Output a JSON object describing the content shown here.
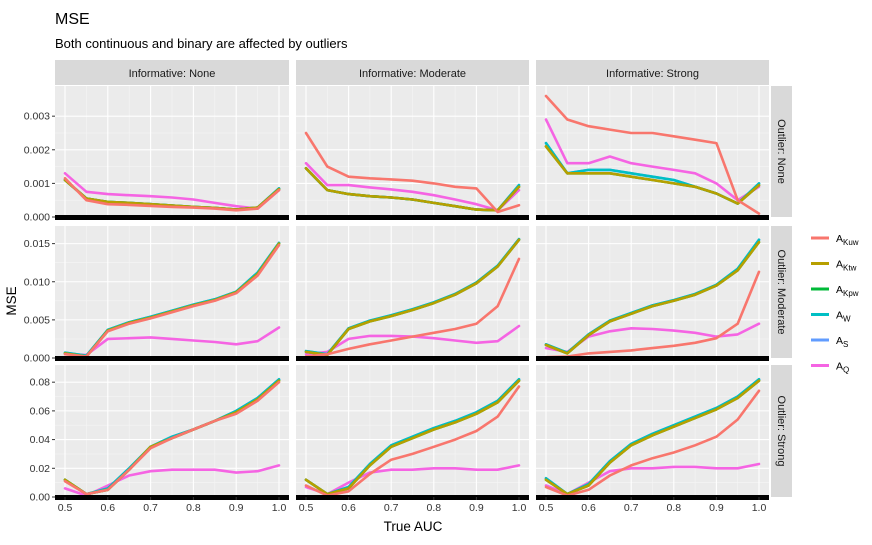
{
  "chart_data": {
    "type": "line",
    "title": "MSE",
    "subtitle": "Both continuous and binary are affected by outliers",
    "xlabel": "True AUC",
    "ylabel": "MSE",
    "facet_cols": [
      "Informative: None",
      "Informative: Moderate",
      "Informative: Strong"
    ],
    "facet_rows": [
      "Outlier: None",
      "Outlier: Moderate",
      "Outlier: Strong"
    ],
    "xlim": [
      0.5,
      1.0
    ],
    "x_ticks": [
      "0.5",
      "0.6",
      "0.7",
      "0.8",
      "0.9",
      "1.0"
    ],
    "x": [
      0.5,
      0.55,
      0.6,
      0.65,
      0.7,
      0.75,
      0.8,
      0.85,
      0.9,
      0.95,
      1.0
    ],
    "grid": true,
    "legend_position": "right",
    "legend": [
      {
        "key": "Kuw",
        "base": "A",
        "sub": "Kuw",
        "color": "#F8766D"
      },
      {
        "key": "Ktw",
        "base": "A",
        "sub": "Ktw",
        "color": "#B79F00"
      },
      {
        "key": "Kpw",
        "base": "A",
        "sub": "Kpw",
        "color": "#00BA38"
      },
      {
        "key": "W",
        "base": "A",
        "sub": "W",
        "color": "#00BFC4"
      },
      {
        "key": "S",
        "base": "A",
        "sub": "S",
        "color": "#619CFF"
      },
      {
        "key": "Q",
        "base": "A",
        "sub": "Q",
        "color": "#F564E3"
      }
    ],
    "rows": [
      {
        "ylim": [
          0,
          0.0036
        ],
        "y_ticks": [
          "0.000",
          "0.001",
          "0.002",
          "0.003"
        ],
        "y_tick_values": [
          0,
          0.001,
          0.002,
          0.003
        ],
        "panels": [
          {
            "series": {
              "Kuw": [
                0.00115,
                0.0005,
                0.00038,
                0.00036,
                0.00033,
                0.0003,
                0.00028,
                0.00025,
                0.0002,
                0.00025,
                0.0008
              ],
              "Ktw": [
                0.0011,
                0.00055,
                0.00045,
                0.00042,
                0.00038,
                0.00034,
                0.0003,
                0.00027,
                0.00022,
                0.00028,
                0.00083
              ],
              "Kpw": [
                0.0011,
                0.00055,
                0.00045,
                0.00042,
                0.00038,
                0.00034,
                0.0003,
                0.00027,
                0.00022,
                0.00028,
                0.00083
              ],
              "W": [
                0.0011,
                0.00055,
                0.00045,
                0.00042,
                0.00038,
                0.00034,
                0.0003,
                0.00027,
                0.00022,
                0.00028,
                0.00085
              ],
              "S": [
                0.0011,
                0.00055,
                0.00045,
                0.00042,
                0.00038,
                0.00034,
                0.0003,
                0.00027,
                0.00022,
                0.00028,
                0.00085
              ],
              "Q": [
                0.0013,
                0.00075,
                0.00068,
                0.00065,
                0.00062,
                0.00058,
                0.00052,
                0.00042,
                0.00032,
                0.00025,
                0.0008
              ]
            }
          },
          {
            "series": {
              "Kuw": [
                0.0025,
                0.0015,
                0.0012,
                0.00115,
                0.00112,
                0.00108,
                0.001,
                0.0009,
                0.00085,
                0.00015,
                0.00035
              ],
              "Ktw": [
                0.00145,
                0.0008,
                0.00068,
                0.00062,
                0.00058,
                0.00052,
                0.00042,
                0.00032,
                0.00022,
                0.0002,
                0.0009
              ],
              "Kpw": [
                0.00145,
                0.0008,
                0.00068,
                0.00062,
                0.00058,
                0.00052,
                0.00042,
                0.00032,
                0.00022,
                0.0002,
                0.0009
              ],
              "W": [
                0.00145,
                0.0008,
                0.00068,
                0.00062,
                0.00058,
                0.00052,
                0.00042,
                0.00032,
                0.00022,
                0.0002,
                0.00095
              ],
              "S": [
                0.00145,
                0.0008,
                0.00068,
                0.00062,
                0.00058,
                0.00052,
                0.00042,
                0.00032,
                0.00022,
                0.0002,
                0.00095
              ],
              "Q": [
                0.0016,
                0.00095,
                0.00095,
                0.00088,
                0.00082,
                0.00075,
                0.00065,
                0.00052,
                0.00038,
                0.0002,
                0.0008
              ]
            }
          },
          {
            "series": {
              "Kuw": [
                0.0036,
                0.0029,
                0.0027,
                0.0026,
                0.0025,
                0.0025,
                0.0024,
                0.0023,
                0.0022,
                0.0005,
                0.0001
              ],
              "Ktw": [
                0.0021,
                0.0013,
                0.0013,
                0.0013,
                0.0012,
                0.0011,
                0.001,
                0.0009,
                0.0007,
                0.0004,
                0.00095
              ],
              "Kpw": [
                0.0021,
                0.0013,
                0.0013,
                0.0013,
                0.0012,
                0.0011,
                0.001,
                0.0009,
                0.0007,
                0.0004,
                0.00095
              ],
              "W": [
                0.0022,
                0.0013,
                0.0014,
                0.0014,
                0.0013,
                0.0012,
                0.0011,
                0.0009,
                0.0007,
                0.0004,
                0.001
              ],
              "S": [
                0.0022,
                0.0013,
                0.0014,
                0.0014,
                0.0013,
                0.0012,
                0.0011,
                0.0009,
                0.0007,
                0.0004,
                0.001
              ],
              "Q": [
                0.0029,
                0.0016,
                0.0016,
                0.0018,
                0.0016,
                0.0015,
                0.0014,
                0.0013,
                0.001,
                0.0005,
                0.0009
              ]
            }
          }
        ]
      },
      {
        "ylim": [
          0,
          0.016
        ],
        "y_ticks": [
          "0.000",
          "0.005",
          "0.010",
          "0.015"
        ],
        "y_tick_values": [
          0,
          0.005,
          0.01,
          0.015
        ],
        "panels": [
          {
            "series": {
              "Kuw": [
                0.0005,
                0.0002,
                0.0035,
                0.0045,
                0.0052,
                0.006,
                0.0068,
                0.0075,
                0.0085,
                0.0108,
                0.0148
              ],
              "Ktw": [
                0.0006,
                0.0002,
                0.0036,
                0.0046,
                0.0053,
                0.0061,
                0.0069,
                0.0076,
                0.0086,
                0.011,
                0.015
              ],
              "Kpw": [
                0.0006,
                0.0002,
                0.0036,
                0.0046,
                0.0053,
                0.0061,
                0.0069,
                0.0076,
                0.0086,
                0.011,
                0.015
              ],
              "W": [
                0.0007,
                0.0003,
                0.0037,
                0.0047,
                0.0054,
                0.0062,
                0.007,
                0.0077,
                0.0087,
                0.0112,
                0.0151
              ],
              "S": [
                0.0007,
                0.0003,
                0.0037,
                0.0047,
                0.0054,
                0.0062,
                0.007,
                0.0077,
                0.0087,
                0.0112,
                0.0151
              ],
              "Q": [
                0.0005,
                0.0004,
                0.0025,
                0.0026,
                0.0027,
                0.0025,
                0.0023,
                0.0021,
                0.0018,
                0.0022,
                0.004
              ]
            }
          },
          {
            "series": {
              "Kuw": [
                0.0002,
                0.0005,
                0.0012,
                0.0018,
                0.0023,
                0.0028,
                0.0033,
                0.0038,
                0.0045,
                0.0068,
                0.013
              ],
              "Ktw": [
                0.0008,
                0.0004,
                0.0038,
                0.0048,
                0.0055,
                0.0063,
                0.0072,
                0.0083,
                0.0098,
                0.012,
                0.0155
              ],
              "Kpw": [
                0.0008,
                0.0004,
                0.0038,
                0.0048,
                0.0055,
                0.0063,
                0.0072,
                0.0083,
                0.0098,
                0.012,
                0.0155
              ],
              "W": [
                0.0009,
                0.0005,
                0.0039,
                0.0049,
                0.0056,
                0.0064,
                0.0073,
                0.0084,
                0.0099,
                0.0121,
                0.0156
              ],
              "S": [
                0.0009,
                0.0005,
                0.0039,
                0.0049,
                0.0056,
                0.0064,
                0.0073,
                0.0084,
                0.0099,
                0.0121,
                0.0156
              ],
              "Q": [
                0.0005,
                0.0008,
                0.0025,
                0.0029,
                0.0029,
                0.0028,
                0.0026,
                0.0023,
                0.002,
                0.0022,
                0.0042
              ]
            }
          },
          {
            "series": {
              "Kuw": [
                0.0001,
                0.0002,
                0.0006,
                0.0008,
                0.001,
                0.0013,
                0.0016,
                0.002,
                0.0026,
                0.0045,
                0.0113
              ],
              "Ktw": [
                0.0017,
                0.0006,
                0.003,
                0.0048,
                0.0058,
                0.0068,
                0.0075,
                0.0083,
                0.0095,
                0.0115,
                0.0152
              ],
              "Kpw": [
                0.0017,
                0.0006,
                0.003,
                0.0048,
                0.0058,
                0.0068,
                0.0075,
                0.0083,
                0.0095,
                0.0115,
                0.0152
              ],
              "W": [
                0.0018,
                0.0007,
                0.0031,
                0.0049,
                0.0059,
                0.0069,
                0.0076,
                0.0084,
                0.0096,
                0.0117,
                0.0155
              ],
              "S": [
                0.0018,
                0.0007,
                0.0031,
                0.0049,
                0.0059,
                0.0069,
                0.0076,
                0.0084,
                0.0096,
                0.0117,
                0.0155
              ],
              "Q": [
                0.0013,
                0.0008,
                0.0028,
                0.0035,
                0.0039,
                0.0038,
                0.0036,
                0.0033,
                0.0028,
                0.0031,
                0.0045
              ]
            }
          }
        ]
      },
      {
        "ylim": [
          0,
          0.085
        ],
        "y_ticks": [
          "0.00",
          "0.02",
          "0.04",
          "0.06",
          "0.08"
        ],
        "y_tick_values": [
          0,
          0.02,
          0.04,
          0.06,
          0.08
        ],
        "panels": [
          {
            "series": {
              "Kuw": [
                0.011,
                0.002,
                0.005,
                0.019,
                0.034,
                0.041,
                0.047,
                0.053,
                0.058,
                0.067,
                0.08
              ],
              "Ktw": [
                0.012,
                0.002,
                0.005,
                0.019,
                0.035,
                0.041,
                0.047,
                0.053,
                0.059,
                0.068,
                0.081
              ],
              "Kpw": [
                0.012,
                0.002,
                0.005,
                0.019,
                0.035,
                0.041,
                0.047,
                0.053,
                0.059,
                0.068,
                0.081
              ],
              "W": [
                0.012,
                0.002,
                0.006,
                0.02,
                0.035,
                0.042,
                0.047,
                0.053,
                0.06,
                0.069,
                0.082
              ],
              "S": [
                0.012,
                0.002,
                0.006,
                0.02,
                0.035,
                0.042,
                0.047,
                0.053,
                0.06,
                0.069,
                0.082
              ],
              "Q": [
                0.006,
                0.001,
                0.008,
                0.015,
                0.018,
                0.019,
                0.019,
                0.019,
                0.017,
                0.018,
                0.022
              ]
            }
          },
          {
            "series": {
              "Kuw": [
                0.008,
                0.001,
                0.004,
                0.016,
                0.026,
                0.03,
                0.035,
                0.04,
                0.046,
                0.056,
                0.077
              ],
              "Ktw": [
                0.012,
                0.002,
                0.006,
                0.022,
                0.035,
                0.041,
                0.047,
                0.052,
                0.058,
                0.066,
                0.081
              ],
              "Kpw": [
                0.012,
                0.002,
                0.006,
                0.022,
                0.035,
                0.041,
                0.047,
                0.052,
                0.058,
                0.066,
                0.081
              ],
              "W": [
                0.012,
                0.002,
                0.007,
                0.023,
                0.036,
                0.042,
                0.048,
                0.053,
                0.059,
                0.067,
                0.082
              ],
              "S": [
                0.012,
                0.002,
                0.007,
                0.023,
                0.036,
                0.042,
                0.048,
                0.053,
                0.059,
                0.067,
                0.082
              ],
              "Q": [
                0.007,
                0.002,
                0.01,
                0.017,
                0.019,
                0.019,
                0.02,
                0.02,
                0.019,
                0.019,
                0.022
              ]
            }
          },
          {
            "series": {
              "Kuw": [
                0.007,
                0.001,
                0.005,
                0.015,
                0.022,
                0.027,
                0.031,
                0.036,
                0.042,
                0.054,
                0.074
              ],
              "Ktw": [
                0.012,
                0.002,
                0.008,
                0.024,
                0.036,
                0.043,
                0.049,
                0.055,
                0.061,
                0.069,
                0.081
              ],
              "Kpw": [
                0.012,
                0.002,
                0.008,
                0.024,
                0.036,
                0.043,
                0.049,
                0.055,
                0.061,
                0.069,
                0.081
              ],
              "W": [
                0.013,
                0.002,
                0.009,
                0.025,
                0.037,
                0.044,
                0.05,
                0.056,
                0.062,
                0.07,
                0.082
              ],
              "S": [
                0.013,
                0.002,
                0.009,
                0.025,
                0.037,
                0.044,
                0.05,
                0.056,
                0.062,
                0.07,
                0.082
              ],
              "Q": [
                0.008,
                0.002,
                0.01,
                0.018,
                0.02,
                0.02,
                0.021,
                0.021,
                0.02,
                0.02,
                0.023
              ]
            }
          }
        ]
      }
    ]
  }
}
